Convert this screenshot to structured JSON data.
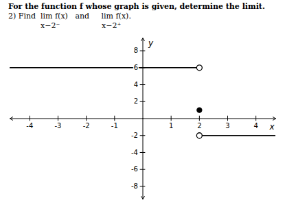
{
  "chart_data": {
    "type": "line",
    "title": "For the function f whose graph is given, determine the limit.",
    "subtitle": "2) Find  lim f(x)   and     lim f(x).",
    "annotations": [
      "x−2⁻",
      "x−2⁺"
    ],
    "xlabel": "x",
    "ylabel": "y",
    "xlim": [
      -4.7,
      4.7
    ],
    "ylim": [
      -9.5,
      9.5
    ],
    "xticks": [
      -4,
      -3,
      -2,
      -1,
      1,
      2,
      3,
      4
    ],
    "yticks": [
      -8,
      -6,
      -4,
      -2,
      2,
      4,
      6,
      8
    ],
    "series": [
      {
        "type": "line",
        "x": [
          -4.7,
          2.0
        ],
        "values": [
          6.0,
          6.0
        ],
        "color": "#000000"
      },
      {
        "type": "line",
        "x": [
          2.0,
          4.7
        ],
        "values": [
          -2.0,
          -2.0
        ],
        "color": "#000000"
      },
      {
        "type": "scatter",
        "x": [
          2.0,
          2.0
        ],
        "values": [
          6.0,
          -2.0
        ],
        "marker": "open_circle",
        "color": "#000000"
      },
      {
        "type": "scatter",
        "x": [
          2.0
        ],
        "values": [
          1.0
        ],
        "marker": "circle",
        "color": "#000000"
      }
    ]
  }
}
